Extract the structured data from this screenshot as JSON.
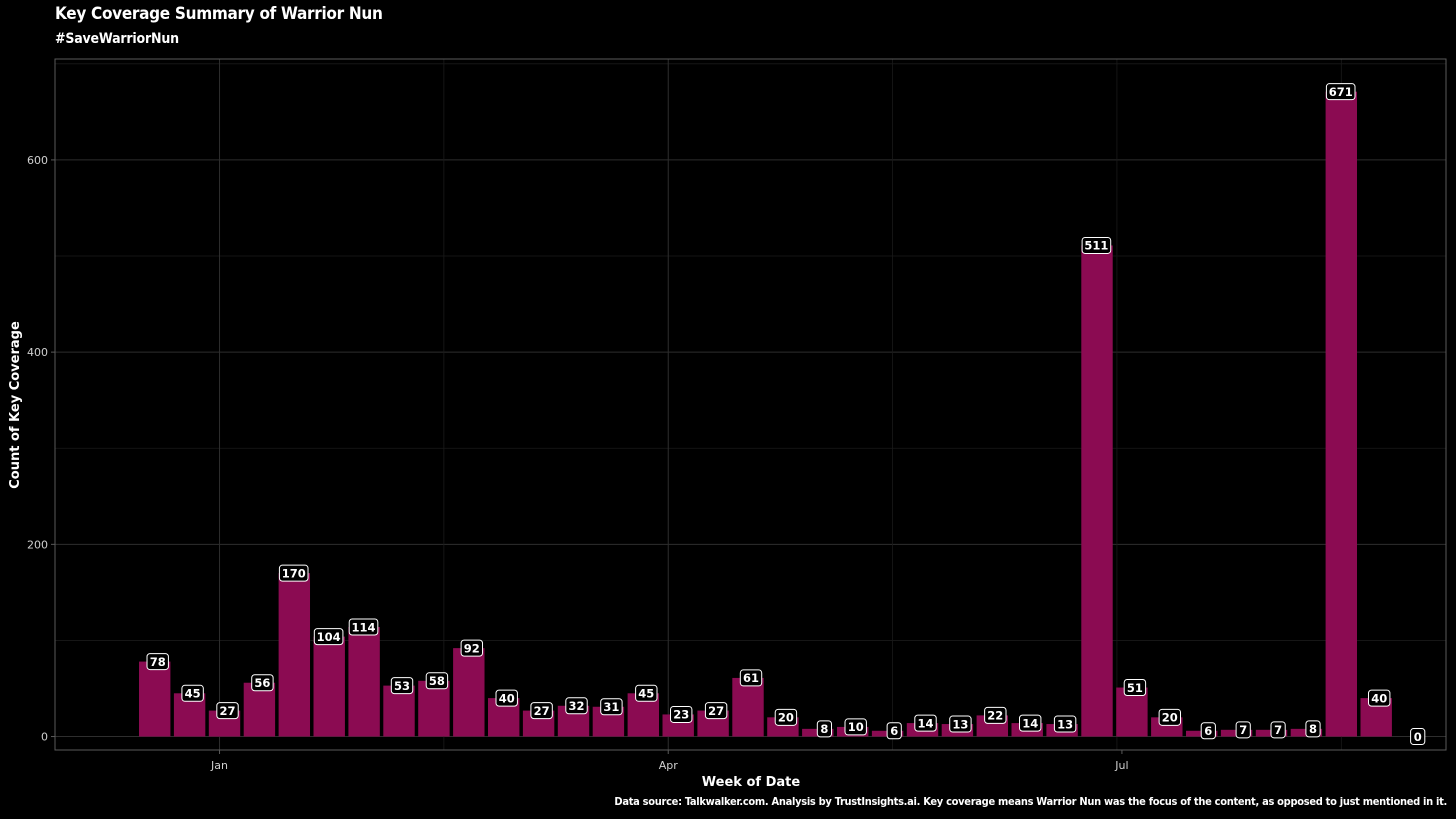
{
  "chart_data": {
    "type": "bar",
    "title": "Key Coverage Summary of Warrior Nun",
    "subtitle": "#SaveWarriorNun",
    "caption": "Data source: Talkwalker.com. Analysis by TrustInsights.ai. Key coverage means Warrior Nun was the focus of the content, as opposed to just mentioned in it.",
    "xlabel": "Week of Date",
    "ylabel": "Count of Key Coverage",
    "ylim": [
      -14,
      705
    ],
    "yticks": [
      0,
      200,
      400,
      600
    ],
    "xticks": [
      {
        "label": "Jan",
        "date": "2023-01-01"
      },
      {
        "label": "Apr",
        "date": "2023-04-01"
      },
      {
        "label": "Jul",
        "date": "2023-07-01"
      }
    ],
    "xlim": [
      "2022-11-29",
      "2023-09-04"
    ],
    "x": [
      "2022-12-19",
      "2022-12-26",
      "2023-01-02",
      "2023-01-09",
      "2023-01-16",
      "2023-01-23",
      "2023-01-30",
      "2023-02-06",
      "2023-02-13",
      "2023-02-20",
      "2023-02-27",
      "2023-03-06",
      "2023-03-13",
      "2023-03-20",
      "2023-03-27",
      "2023-04-03",
      "2023-04-10",
      "2023-04-17",
      "2023-04-24",
      "2023-05-01",
      "2023-05-08",
      "2023-05-15",
      "2023-05-22",
      "2023-05-29",
      "2023-06-05",
      "2023-06-12",
      "2023-06-19",
      "2023-06-26",
      "2023-07-03",
      "2023-07-10",
      "2023-07-17",
      "2023-07-24",
      "2023-07-31",
      "2023-08-07",
      "2023-08-14",
      "2023-08-21",
      "2023-08-28"
    ],
    "values": [
      78,
      45,
      27,
      56,
      170,
      104,
      114,
      53,
      58,
      92,
      40,
      27,
      32,
      31,
      45,
      23,
      27,
      61,
      20,
      8,
      10,
      6,
      14,
      13,
      22,
      14,
      13,
      511,
      51,
      20,
      6,
      7,
      7,
      8,
      671,
      40,
      0
    ],
    "bar_color": "#8b0b52",
    "background": "#000000",
    "grid": true
  }
}
